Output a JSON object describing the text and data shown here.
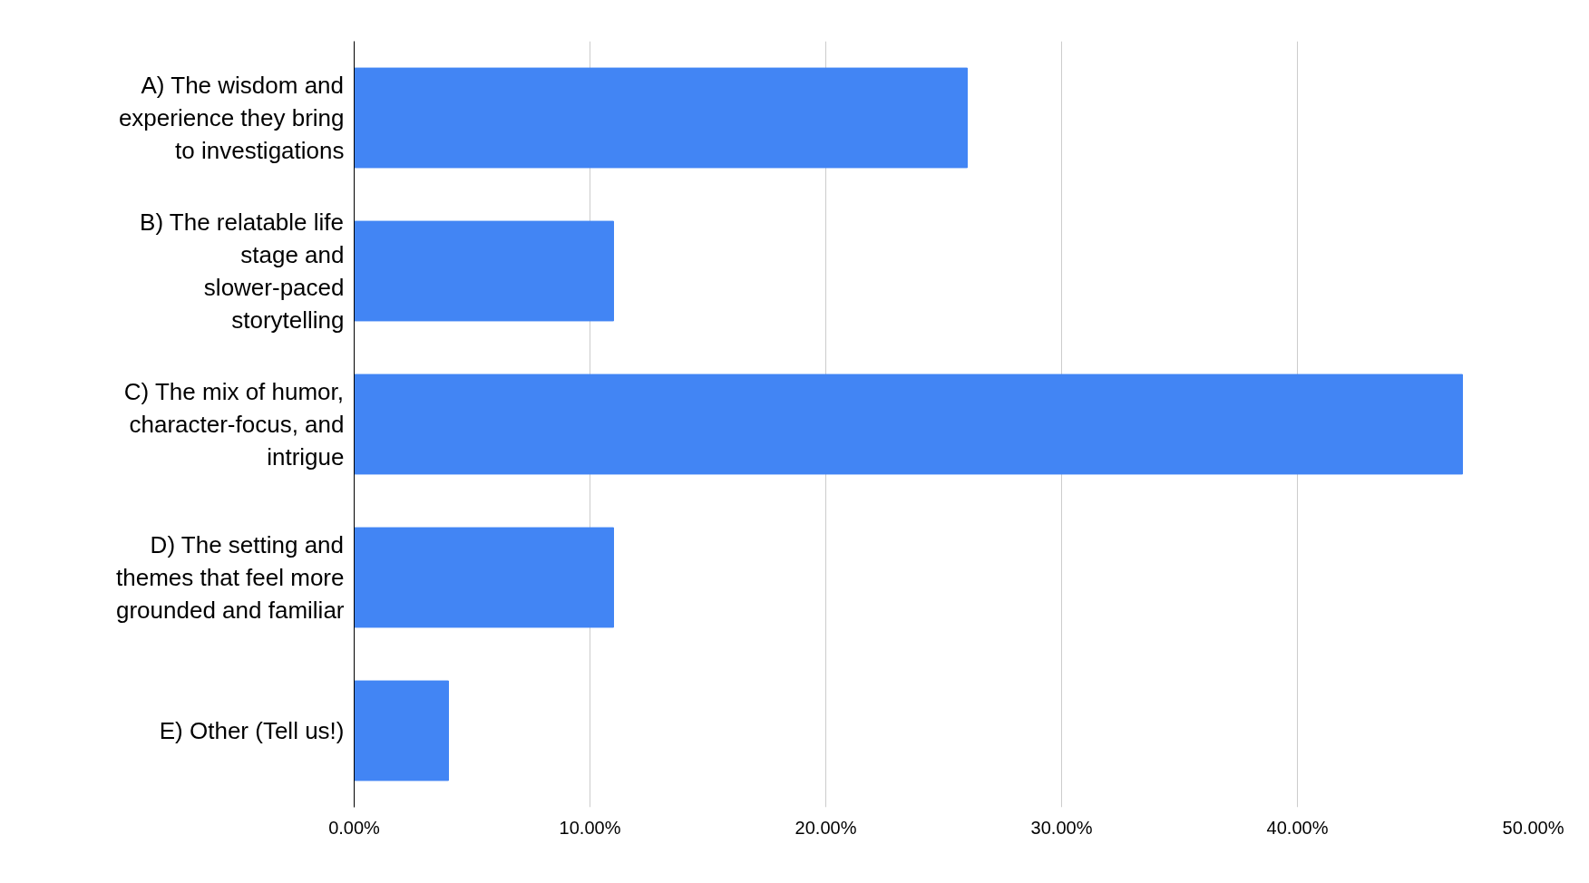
{
  "chart_data": {
    "type": "bar",
    "orientation": "horizontal",
    "categories": [
      "A) The wisdom and experience they bring to investigations",
      "B) The relatable life stage and slower-paced storytelling",
      "C) The mix of humor, character-focus, and intrigue",
      "D) The setting and themes that feel more grounded and familiar",
      "E) Other (Tell us!)"
    ],
    "values": [
      26,
      11,
      47,
      11,
      4
    ],
    "color": "#4285f4",
    "xlim": [
      0,
      50
    ],
    "xticks": [
      {
        "value": 0,
        "label": "0.00%"
      },
      {
        "value": 10,
        "label": "10.00%"
      },
      {
        "value": 20,
        "label": "20.00%"
      },
      {
        "value": 30,
        "label": "30.00%"
      },
      {
        "value": 40,
        "label": "40.00%"
      },
      {
        "value": 50,
        "label": "50.00%"
      }
    ],
    "grid": "x"
  }
}
